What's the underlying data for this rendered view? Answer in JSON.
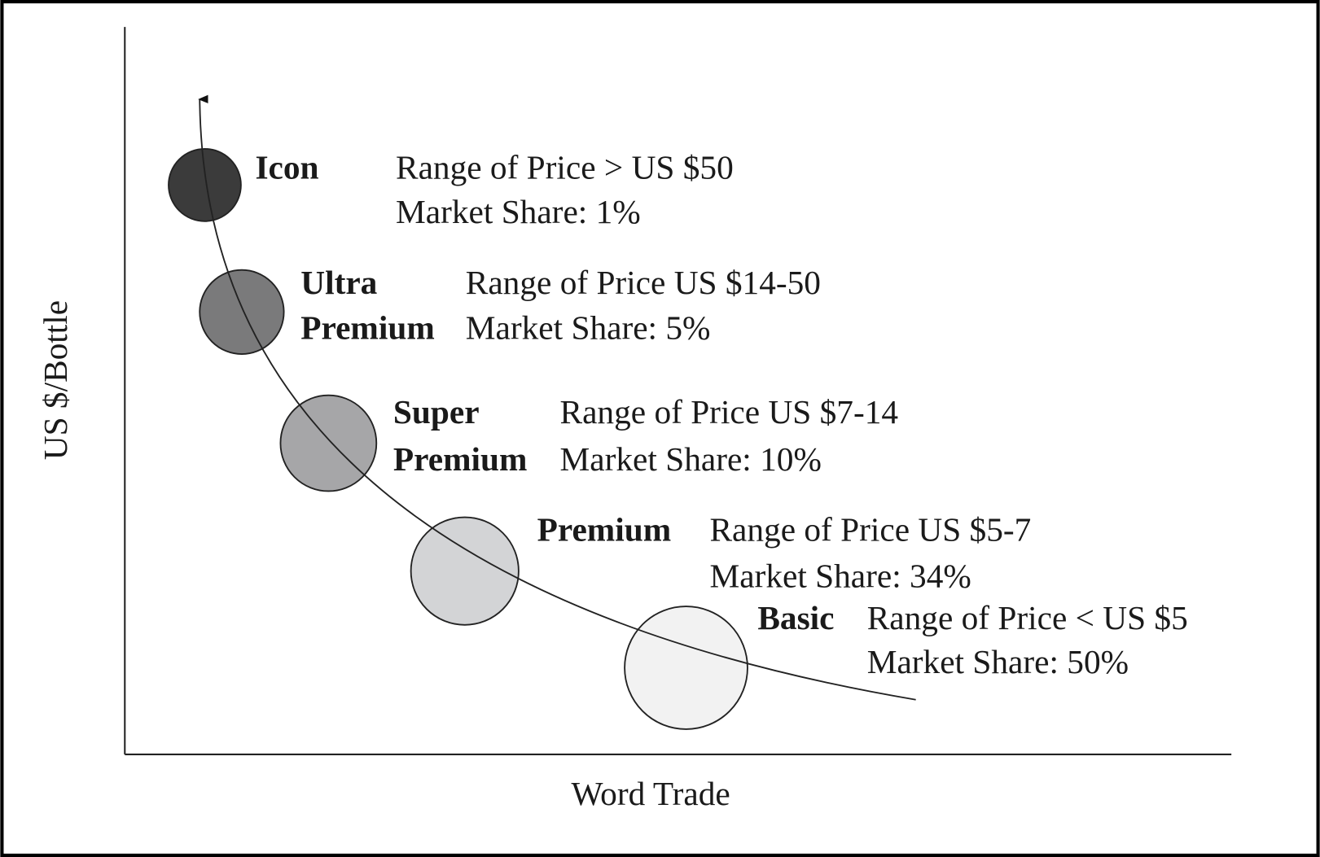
{
  "diagram": {
    "y_axis_label": "US $/Bottle",
    "x_axis_label": "Word Trade",
    "segments": [
      {
        "name": [
          "Icon"
        ],
        "price": "Range of Price > US $50",
        "share": "Market Share: 1%",
        "color": "#3b3b3b"
      },
      {
        "name": [
          "Ultra",
          "Premium"
        ],
        "price": "Range of Price US $14-50",
        "share": "Market Share: 5%",
        "color": "#7a7a7b"
      },
      {
        "name": [
          "Super",
          "Premium"
        ],
        "price": "Range of Price US $7-14",
        "share": "Market Share: 10%",
        "color": "#a6a6a8"
      },
      {
        "name": [
          "Premium"
        ],
        "price": "Range of Price US $5-7",
        "share": "Market Share: 34%",
        "color": "#d3d4d6"
      },
      {
        "name": [
          "Basic"
        ],
        "price": "Range of Price < US $5",
        "share": "Market Share: 50%",
        "color": "#f2f2f2"
      }
    ]
  }
}
